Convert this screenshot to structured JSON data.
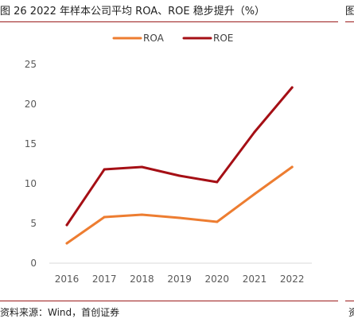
{
  "header": {
    "title": "图 26 2022 年样本公司平均 ROA、ROE 稳步提升（%）",
    "next_title_fragment": "图"
  },
  "footer": {
    "source": "资料来源：Wind，首创证券",
    "next_source_fragment": "资"
  },
  "colors": {
    "rule": "#9b1c1c",
    "roa": "#ed7d31",
    "roe": "#a50f15",
    "axis": "#d9d9d9"
  },
  "chart_data": {
    "type": "line",
    "title": "",
    "xlabel": "",
    "ylabel": "",
    "categories": [
      "2016",
      "2017",
      "2018",
      "2019",
      "2020",
      "2021",
      "2022"
    ],
    "series": [
      {
        "name": "ROA",
        "color": "#ed7d31",
        "values": [
          2.5,
          5.8,
          6.1,
          5.7,
          5.2,
          8.7,
          12.1
        ]
      },
      {
        "name": "ROE",
        "color": "#a50f15",
        "values": [
          4.8,
          11.8,
          12.1,
          11.0,
          10.2,
          16.5,
          22.1
        ]
      }
    ],
    "ylim": [
      0,
      25
    ],
    "yticks": [
      "0",
      "5",
      "10",
      "15",
      "20",
      "25"
    ],
    "grid": false,
    "legend": "top-center"
  }
}
